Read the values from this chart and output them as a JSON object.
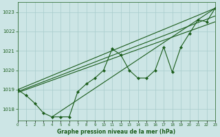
{
  "title": "Graphe pression niveau de la mer (hPa)",
  "bg_color": "#cce5e5",
  "line_color": "#1a5c1a",
  "grid_color": "#a8cccc",
  "xlim": [
    0,
    23
  ],
  "ylim": [
    1017.4,
    1023.5
  ],
  "yticks": [
    1018,
    1019,
    1020,
    1021,
    1022,
    1023
  ],
  "xticks": [
    0,
    1,
    2,
    3,
    4,
    5,
    6,
    7,
    8,
    9,
    10,
    11,
    12,
    13,
    14,
    15,
    16,
    17,
    18,
    19,
    20,
    21,
    22,
    23
  ],
  "main_y": [
    1019.0,
    1018.7,
    1018.3,
    1017.8,
    1017.6,
    1017.6,
    1017.6,
    1018.9,
    1019.3,
    1019.6,
    1020.0,
    1021.1,
    1020.8,
    1020.0,
    1019.6,
    1019.6,
    1020.0,
    1021.2,
    1019.9,
    1021.2,
    1021.9,
    1022.6,
    1022.5,
    1023.2
  ],
  "trend_lines": [
    {
      "x0": 0,
      "y0": 1019.0,
      "x1": 23,
      "y1": 1023.2
    },
    {
      "x0": 0,
      "y0": 1018.9,
      "x1": 23,
      "y1": 1022.8
    },
    {
      "x0": 0,
      "y0": 1018.85,
      "x1": 23,
      "y1": 1022.5
    },
    {
      "x0": 4,
      "y0": 1017.6,
      "x1": 23,
      "y1": 1023.2
    }
  ]
}
